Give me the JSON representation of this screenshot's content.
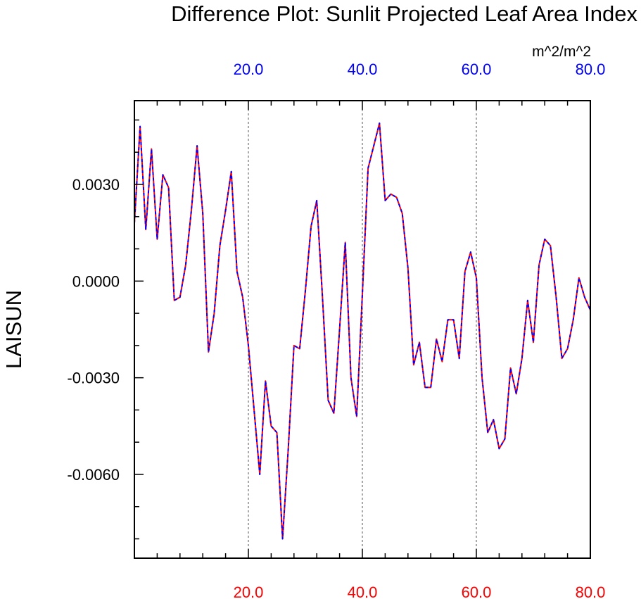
{
  "chart_data": {
    "type": "line",
    "title": "Difference Plot: Sunlit Projected Leaf Area Index",
    "units": "m^2/m^2",
    "ylabel": "LAISUN",
    "xlim": [
      0,
      80
    ],
    "ylim": [
      -0.0086,
      0.0056
    ],
    "x_ticks": [
      20,
      40,
      60,
      80
    ],
    "x_tick_labels": [
      "20.0",
      "40.0",
      "60.0",
      "80.0"
    ],
    "y_ticks": [
      0.003,
      0.0,
      -0.003,
      -0.006
    ],
    "y_tick_labels": [
      "0.0030",
      "0.0000",
      "-0.0030",
      "-0.0060"
    ],
    "y_minor_step": 0.001,
    "x_minor_step": 4,
    "gridlines_x": [
      20,
      40,
      60
    ],
    "grid": "vertical dashed at major x ticks",
    "colors": {
      "series_a": "#ff0000",
      "series_b": "#0000ff",
      "top_ticks": "#0000ff",
      "bottom_ticks": "#ff0000",
      "grid": "#555555",
      "frame": "#000000"
    },
    "x": [
      0,
      1,
      2,
      3,
      4,
      5,
      6,
      7,
      8,
      9,
      10,
      11,
      12,
      13,
      14,
      15,
      16,
      17,
      18,
      19,
      20,
      21,
      22,
      23,
      24,
      25,
      26,
      27,
      28,
      29,
      30,
      31,
      32,
      33,
      34,
      35,
      36,
      37,
      38,
      39,
      40,
      41,
      42,
      43,
      44,
      45,
      46,
      47,
      48,
      49,
      50,
      51,
      52,
      53,
      54,
      55,
      56,
      57,
      58,
      59,
      60,
      61,
      62,
      63,
      64,
      65,
      66,
      67,
      68,
      69,
      70,
      71,
      72,
      73,
      74,
      75,
      76,
      77,
      78,
      79,
      80
    ],
    "series": [
      {
        "values": [
          0.0018,
          0.0048,
          0.0016,
          0.0041,
          0.0013,
          0.0033,
          0.0029,
          -0.0006,
          -0.0005,
          0.0005,
          0.0022,
          0.0042,
          0.0021,
          -0.0022,
          -0.001,
          0.0011,
          0.0022,
          0.0034,
          0.0003,
          -0.0005,
          -0.002,
          -0.004,
          -0.006,
          -0.0031,
          -0.0045,
          -0.0047,
          -0.008,
          -0.0052,
          -0.002,
          -0.0021,
          -0.0003,
          0.0017,
          0.0025,
          -0.0005,
          -0.0037,
          -0.0041,
          -0.0015,
          0.0012,
          -0.003,
          -0.0042,
          -0.0004,
          0.0035,
          0.0042,
          0.0049,
          0.0025,
          0.0027,
          0.0026,
          0.0021,
          0.0004,
          -0.0026,
          -0.0019,
          -0.0033,
          -0.0033,
          -0.0018,
          -0.0025,
          -0.0012,
          -0.0012,
          -0.0024,
          0.0003,
          0.0009,
          0.0001,
          -0.003,
          -0.0047,
          -0.0043,
          -0.0052,
          -0.0049,
          -0.0027,
          -0.0035,
          -0.0024,
          -0.0006,
          -0.0019,
          0.0005,
          0.0013,
          0.0011,
          -0.0005,
          -0.0024,
          -0.0021,
          -0.0012,
          0.0001,
          -0.0005,
          -0.0009
        ]
      }
    ]
  }
}
